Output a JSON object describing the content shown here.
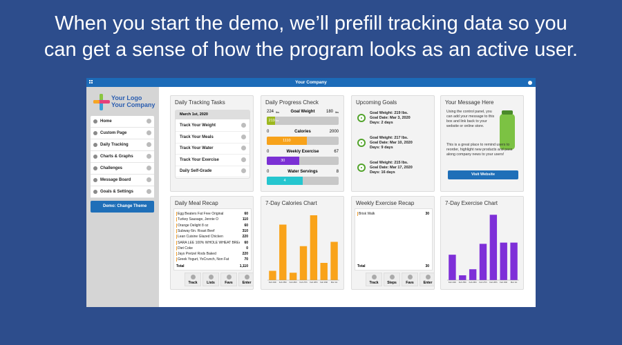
{
  "headline": [
    "When you start the demo, we’ll prefill tracking data so you",
    "can get a sense of how the program looks as an active user."
  ],
  "app": {
    "company": "Your Company",
    "logo": [
      "Your Logo",
      "Your Company"
    ],
    "nav": [
      "Home",
      "Custom Page",
      "Daily Tracking",
      "Charts & Graphs",
      "Challenges",
      "Message Board",
      "Goals & Settings"
    ],
    "theme_button": "Demo: Change Theme"
  },
  "tracking_tasks": {
    "title": "Daily Tracking Tasks",
    "date": "March 1st, 2020",
    "tasks": [
      "Track Your Weight",
      "Track Your Meals",
      "Track Your Water",
      "Track Your Exercise",
      "Daily Self-Grade"
    ]
  },
  "progress": {
    "title": "Daily Progress Check",
    "items": [
      {
        "label": "Goal Weight",
        "start": 224,
        "end": 180,
        "value": 219,
        "unit": "lbs",
        "color": "#9db81f"
      },
      {
        "label": "Calories",
        "start": 0,
        "end": 2000,
        "value": 1110,
        "color": "#f7a21b"
      },
      {
        "label": "Weekly Exercise",
        "start": 0,
        "end": 67,
        "value": 30,
        "color": "#7b30d4"
      },
      {
        "label": "Water Servings",
        "start": 0,
        "end": 8,
        "value": 4,
        "color": "#25c6cf"
      }
    ]
  },
  "goals": {
    "title": "Upcoming Goals",
    "items": [
      [
        "Goal Weight: 219 lbs.",
        "Goal Date: Mar 3, 2020",
        "Days: 2 days"
      ],
      [
        "Goal Weight: 217 lbs.",
        "Goal Date: Mar 10, 2020",
        "Days: 9 days"
      ],
      [
        "Goal Weight: 215 lbs.",
        "Goal Date: Mar 17, 2020",
        "Days: 16 days"
      ]
    ]
  },
  "message": {
    "title": "Your Message Here",
    "paragraphs": [
      "Using the control panel, you can add your message to this box and link back to your website or online store.",
      "This is a great place to remind users to reorder, highlight new products and pass along company news to your users!"
    ],
    "button": "Visit Website"
  },
  "meal_recap": {
    "title": "Daily Meal Recap",
    "rows": [
      [
        "Egg Beaters Fat Free Original",
        "60"
      ],
      [
        "Turkey Sausage, Jennie O",
        "110"
      ],
      [
        "Orange Delight 8 oz",
        "60"
      ],
      [
        "Subway 6in. Roast Beef",
        "310"
      ],
      [
        "Lean Cuisine Glazed Chicken",
        "220"
      ],
      [
        "SARA LEE 100% WHOLE WHEAT BREAI",
        "60"
      ],
      [
        "Diet Coke",
        "0"
      ],
      [
        "Jays Pretzel Rods Baked",
        "220"
      ],
      [
        "Greek Yogurt, YoCrunch, Non Fat",
        "70"
      ]
    ],
    "total": [
      "Total",
      "1,110"
    ],
    "buttons": [
      "Track",
      "Lists",
      "Favs",
      "Enter"
    ]
  },
  "exercise_recap": {
    "title": "Weekly Exercise Recap",
    "rows": [
      [
        "Brisk Walk",
        "30"
      ]
    ],
    "total": [
      "Total",
      "30"
    ],
    "buttons": [
      "Track",
      "Steps",
      "Favs",
      "Enter"
    ]
  },
  "chart_data": [
    {
      "type": "bar",
      "title": "7-Day Calories Chart",
      "categories": [
        "Feb 24th",
        "Feb 25th",
        "Feb 26th",
        "Feb 27th",
        "Feb 28th",
        "Feb 29th",
        "Mar 1st"
      ],
      "values": [
        270,
        1610,
        215,
        985,
        1880,
        500,
        1110
      ],
      "color": "#f9a31a",
      "ylim": [
        0,
        2000
      ]
    },
    {
      "type": "bar",
      "title": "7-Day Exercise Chart",
      "categories": [
        "Feb 24th",
        "Feb 25th",
        "Feb 26th",
        "Feb 27th",
        "Feb 28th",
        "Feb 29th",
        "Mar 1st"
      ],
      "values": [
        21,
        4,
        9,
        30,
        54,
        31,
        31
      ],
      "color": "#7e2fd8",
      "ylim": [
        0,
        57
      ]
    }
  ]
}
